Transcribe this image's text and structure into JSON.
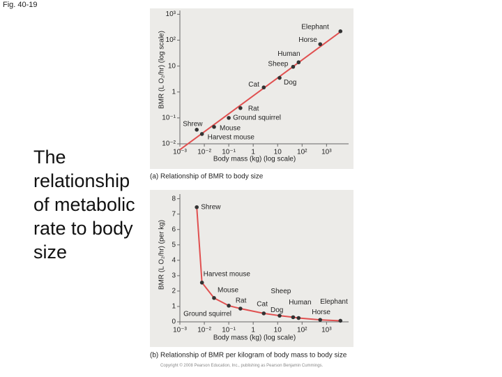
{
  "figure_label": "Fig. 40-19",
  "heading": "The relationship of metabolic rate to body size",
  "copyright": "Copyright © 2008 Pearson Education, Inc., publishing as Pearson Benjamin Cummings.",
  "chart_data": [
    {
      "type": "scatter",
      "caption": "(a) Relationship of BMR to body size",
      "xlabel": "Body mass (kg) (log scale)",
      "ylabel": "BMR (L O₂/hr) (log scale)",
      "point_labels": [
        "Shrew",
        "Harvest mouse",
        "Mouse",
        "Ground squirrel",
        "Rat",
        "Cat",
        "Dog",
        "Sheep",
        "Human",
        "Horse",
        "Elephant"
      ],
      "x": [
        0.0049,
        0.008,
        0.025,
        0.1,
        0.3,
        2.7,
        12,
        43,
        72,
        550,
        3700
      ],
      "values": [
        0.035,
        0.024,
        0.045,
        0.1,
        0.24,
        1.5,
        3.5,
        9.4,
        14,
        70,
        220
      ],
      "color": "#333333",
      "line_color": "#e05050",
      "line": "fit",
      "xlog": true,
      "ylog": true,
      "xlim": [
        0.001,
        8000
      ],
      "ylim": [
        0.01,
        1400
      ],
      "xticks": [
        {
          "value": 0.001,
          "label": "10⁻³"
        },
        {
          "value": 0.01,
          "label": "10⁻²"
        },
        {
          "value": 0.1,
          "label": "10⁻¹"
        },
        1,
        10,
        {
          "value": 100,
          "label": "10²"
        },
        {
          "value": 1000,
          "label": "10³"
        }
      ],
      "yticks": [
        {
          "value": 0.01,
          "label": "10⁻²"
        },
        {
          "value": 0.1,
          "label": "10⁻¹"
        },
        1,
        10,
        {
          "value": 100,
          "label": "10²"
        },
        {
          "value": 1000,
          "label": "10³"
        }
      ]
    },
    {
      "type": "scatter",
      "caption": "(b) Relationship of BMR per kilogram of body mass to body size",
      "xlabel": "Body mass (kg) (log scale)",
      "ylabel": "BMR (L O₂/hr) (per kg)",
      "point_labels": [
        "Shrew",
        "Harvest mouse",
        "Mouse",
        "Ground squirrel",
        "Rat",
        "Cat",
        "Dog",
        "Sheep",
        "Human",
        "Horse",
        "Elephant"
      ],
      "x": [
        0.0049,
        0.008,
        0.025,
        0.1,
        0.3,
        2.7,
        12,
        43,
        72,
        550,
        3700
      ],
      "values": [
        7.45,
        2.55,
        1.55,
        1.05,
        0.86,
        0.55,
        0.4,
        0.3,
        0.25,
        0.13,
        0.07
      ],
      "color": "#333333",
      "line_color": "#e05050",
      "line": "curve",
      "xlog": true,
      "ylog": false,
      "xlim": [
        0.001,
        8000
      ],
      "ylim": [
        0,
        8.3
      ],
      "xticks": [
        {
          "value": 0.001,
          "label": "10⁻³"
        },
        {
          "value": 0.01,
          "label": "10⁻²"
        },
        {
          "value": 0.1,
          "label": "10⁻¹"
        },
        1,
        10,
        {
          "value": 100,
          "label": "10²"
        },
        {
          "value": 1000,
          "label": "10³"
        }
      ],
      "yticks": [
        0,
        1,
        2,
        3,
        4,
        5,
        6,
        7,
        8
      ]
    }
  ]
}
